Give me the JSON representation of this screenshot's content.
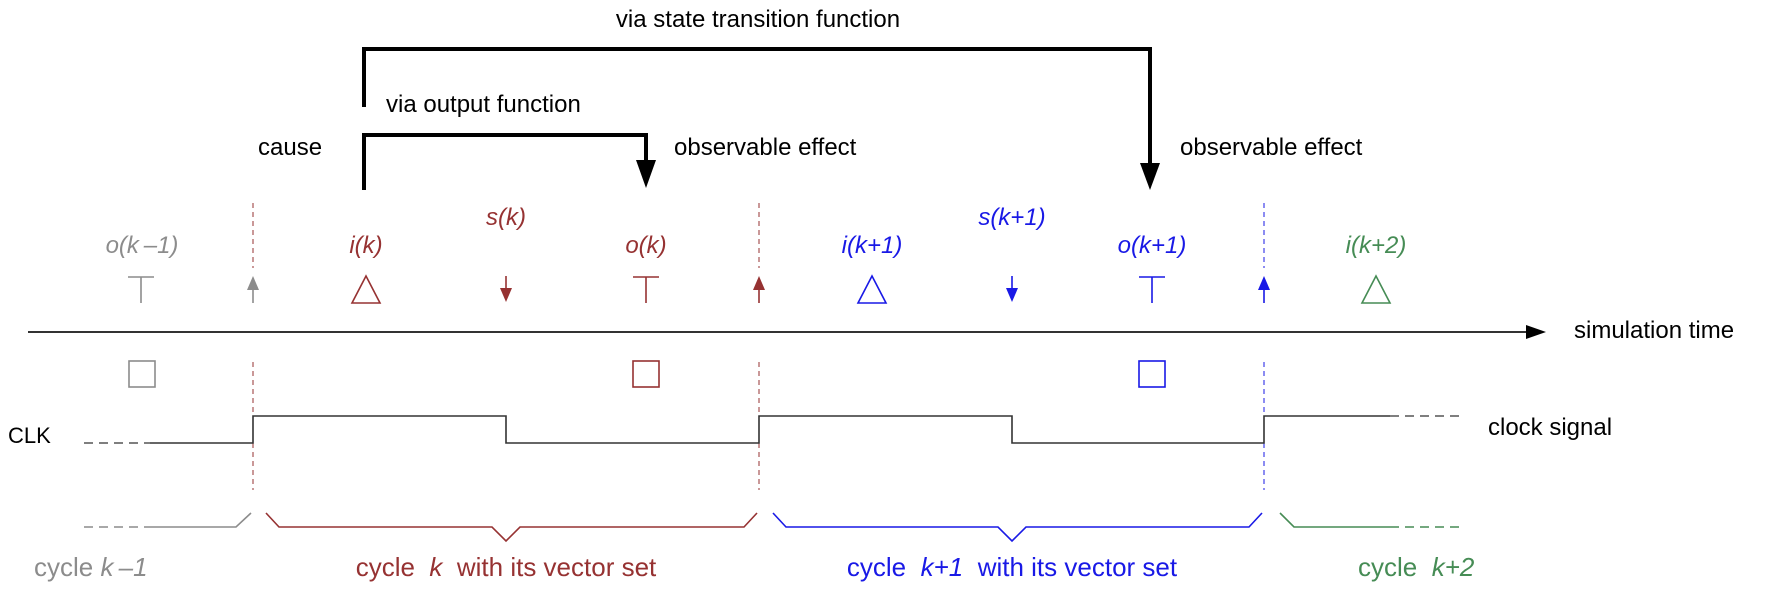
{
  "colors": {
    "black": "#000000",
    "gray": "#8c8c8c",
    "red": "#963232",
    "blue": "#1919e6",
    "green": "#468c55",
    "signal": "#333333"
  },
  "top": {
    "state_transition_label": "via state transition function",
    "output_function_label": "via output function",
    "cause_label": "cause",
    "effect_label_1": "observable effect",
    "effect_label_2": "observable effect"
  },
  "events": {
    "o_km1": "o(k –1)",
    "i_k": "i(k)",
    "s_k": "s(k)",
    "o_k": "o(k)",
    "i_kp1": "i(k+1)",
    "s_kp1": "s(k+1)",
    "o_kp1": "o(k+1)",
    "i_kp2": "i(k+2)"
  },
  "axis": {
    "time_label": "simulation time",
    "clk_label": "CLK",
    "clock_signal_label": "clock signal"
  },
  "cycles": {
    "km1": {
      "word": "cycle ",
      "index": "k –1",
      "suffix": ""
    },
    "k": {
      "word": "cycle  ",
      "index": "k",
      "suffix": "  with its vector set"
    },
    "kp1": {
      "word": "cycle  ",
      "index": "k+1",
      "suffix": "  with its vector set"
    },
    "kp2": {
      "word": "cycle  ",
      "index": "k+2",
      "suffix": ""
    }
  }
}
